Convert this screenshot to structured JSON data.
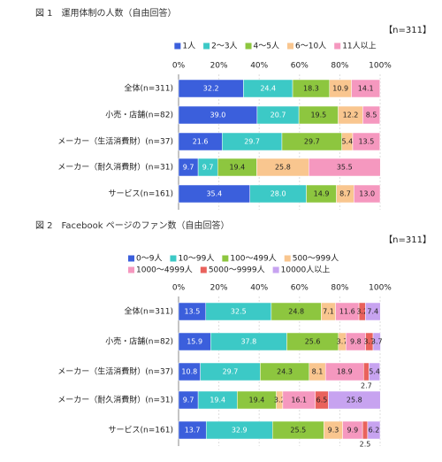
{
  "chart_data": [
    {
      "type": "bar",
      "title": "図 1　運用体制の人数（自由回答）",
      "n_label": "【n=311】",
      "categories": [
        "全体(n=311)",
        "小売・店舗(n=82)",
        "メーカー（生活消費財）(n=37)",
        "メーカー（耐久消費財）(n=31)",
        "サービス(n=161)"
      ],
      "series": [
        {
          "name": "1人",
          "color": "#3b5fdc",
          "values": [
            32.2,
            39.0,
            21.6,
            9.7,
            35.4
          ],
          "value_labels": [
            "32.2",
            "39.0",
            "21.6",
            "9.7",
            "35.4"
          ]
        },
        {
          "name": "2～3人",
          "color": "#3cc9c6",
          "values": [
            24.4,
            20.7,
            29.7,
            9.7,
            28.0
          ],
          "value_labels": [
            "24.4",
            "20.7",
            "29.7",
            "9.7",
            "28.0"
          ]
        },
        {
          "name": "4～5人",
          "color": "#8dc63f",
          "values": [
            18.3,
            19.5,
            29.7,
            19.4,
            14.9
          ]
        },
        {
          "name": "6～10人",
          "color": "#f9c68f",
          "values": [
            10.9,
            12.2,
            5.4,
            25.8,
            8.7
          ]
        },
        {
          "name": "11人以上",
          "color": "#f598bf",
          "values": [
            14.1,
            8.5,
            13.5,
            35.5,
            13.0
          ],
          "value_labels": [
            "14.1",
            "8.5",
            "13.5",
            "35.5",
            "13.0"
          ]
        }
      ],
      "xlim": [
        0,
        100
      ],
      "xticks": [
        {
          "value": 0,
          "label": "0%"
        },
        {
          "value": 20,
          "label": "20%"
        },
        {
          "value": 40,
          "label": "40%"
        },
        {
          "value": 60,
          "label": "60%"
        },
        {
          "value": 80,
          "label": "80%"
        },
        {
          "value": 100,
          "label": "100%"
        }
      ],
      "stacked": true,
      "orientation": "horizontal"
    },
    {
      "type": "bar",
      "title": "図 2　Facebook ページのファン数（自由回答）",
      "n_label": "【n=311】",
      "categories": [
        "全体(n=311)",
        "小売・店舗(n=82)",
        "メーカー（生活消費財）(n=37)",
        "メーカー（耐久消費財）(n=31)",
        "サービス(n=161)"
      ],
      "series": [
        {
          "name": "0～9人",
          "color": "#3b5fdc",
          "values": [
            13.5,
            15.9,
            10.8,
            9.7,
            13.7
          ]
        },
        {
          "name": "10～99人",
          "color": "#3cc9c6",
          "values": [
            32.5,
            37.8,
            29.7,
            19.4,
            32.9
          ]
        },
        {
          "name": "100～499人",
          "color": "#8dc63f",
          "values": [
            24.8,
            25.6,
            24.3,
            19.4,
            25.5
          ]
        },
        {
          "name": "500～999人",
          "color": "#f9c68f",
          "values": [
            7.1,
            3.7,
            8.1,
            3.2,
            9.3
          ]
        },
        {
          "name": "1000～4999人",
          "color": "#f598bf",
          "values": [
            11.6,
            9.8,
            18.9,
            16.1,
            9.9
          ]
        },
        {
          "name": "5000～9999人",
          "color": "#e9625c",
          "values": [
            3.2,
            3.7,
            2.7,
            6.5,
            2.5
          ]
        },
        {
          "name": "10000人以上",
          "color": "#c7a3f0",
          "values": [
            7.4,
            3.7,
            5.4,
            25.8,
            6.2
          ]
        }
      ],
      "xlim": [
        0,
        100
      ],
      "xticks": [
        {
          "value": 0,
          "label": "0%"
        },
        {
          "value": 20,
          "label": "20%"
        },
        {
          "value": 40,
          "label": "40%"
        },
        {
          "value": 60,
          "label": "60%"
        },
        {
          "value": 80,
          "label": "80%"
        },
        {
          "value": 100,
          "label": "100%"
        }
      ],
      "stacked": true,
      "orientation": "horizontal"
    }
  ]
}
